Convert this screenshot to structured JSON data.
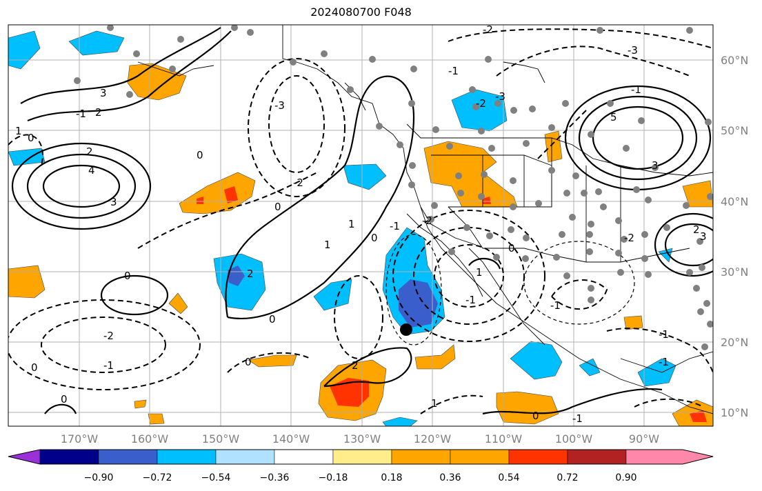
{
  "title": "2024080700 F048",
  "longitude_ticks": [
    "170°W",
    "160°W",
    "150°W",
    "140°W",
    "130°W",
    "120°W",
    "110°W",
    "100°W",
    "90°W"
  ],
  "latitude_ticks": [
    "60°N",
    "50°N",
    "40°N",
    "30°N",
    "20°N",
    "10°N"
  ],
  "colorbar": {
    "tick_labels": [
      "−0.90",
      "−0.72",
      "−0.54",
      "−0.36",
      "−0.18",
      "0.18",
      "0.36",
      "0.54",
      "0.72",
      "0.90"
    ],
    "colors": [
      "#9b30d9",
      "#00008b",
      "#3a5fcd",
      "#00bfff",
      "#b0e2ff",
      "#ffffff",
      "#ffec8b",
      "#ffa500",
      "#ff3300",
      "#b22222",
      "#ff88aa"
    ]
  },
  "contour_labels": [
    "0",
    "-2",
    "-1",
    "0",
    "0",
    "2",
    "4",
    "3",
    "3",
    "2",
    "0",
    "-1",
    "0",
    "2",
    "1",
    "0",
    "-3",
    "-2",
    "0",
    "1",
    "2",
    "1",
    "0",
    "-1",
    "-2",
    "-3",
    "-2",
    "0",
    "-1",
    "-1",
    "0",
    "1",
    "-1",
    "-2",
    "-3",
    "-1",
    "-2",
    "-1",
    "2",
    "3",
    "5",
    "3",
    "1",
    "-1",
    "0",
    "-1"
  ],
  "stations": "gray dots",
  "marker": "black dot"
}
